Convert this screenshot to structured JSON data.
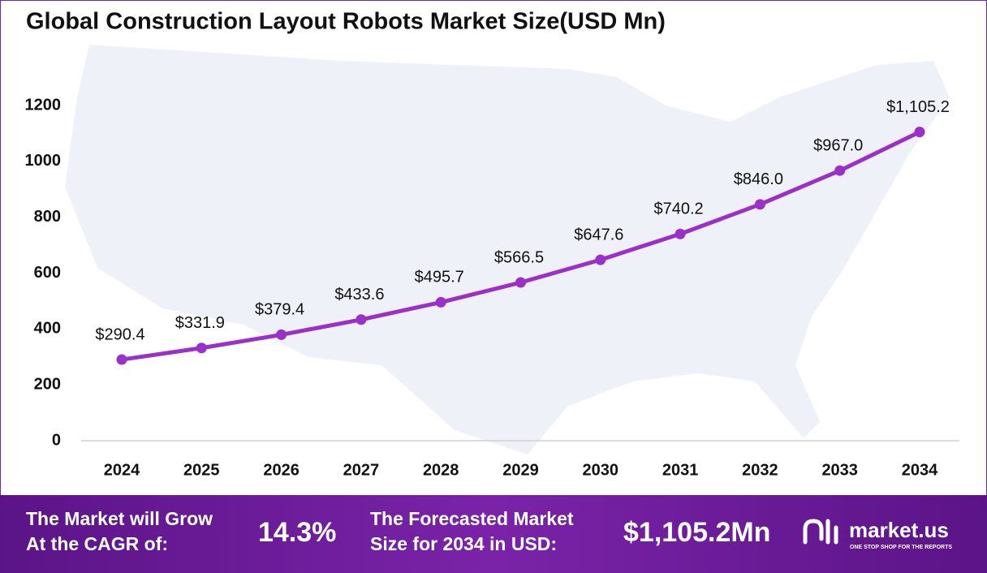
{
  "chart_data": {
    "type": "line",
    "title": "Global Construction Layout Robots Market Size(USD Mn)",
    "categories": [
      "2024",
      "2025",
      "2026",
      "2027",
      "2028",
      "2029",
      "2030",
      "2031",
      "2032",
      "2033",
      "2034"
    ],
    "values": [
      290.4,
      331.9,
      379.4,
      433.6,
      495.7,
      566.5,
      647.6,
      740.2,
      846.0,
      967.0,
      1105.2
    ],
    "value_labels": [
      "$290.4",
      "$331.9",
      "$379.4",
      "$433.6",
      "$495.7",
      "$566.5",
      "$647.6",
      "$740.2",
      "$846.0",
      "$967.0",
      "$1,105.2"
    ],
    "color": "#9b30c9",
    "ylim": [
      0,
      1200
    ],
    "yticks": [
      0,
      200,
      400,
      600,
      800,
      1000,
      1200
    ],
    "grid": false
  },
  "footer": {
    "cagr_lines": [
      "The Market will Grow",
      "At the CAGR of:"
    ],
    "cagr": "14.3%",
    "forecast_lines": [
      "The Forecasted Market",
      "Size for 2034 in USD:"
    ],
    "forecast": "$1,105.2Mn",
    "brand": "market.us",
    "tagline": "ONE STOP SHOP FOR THE REPORTS"
  }
}
